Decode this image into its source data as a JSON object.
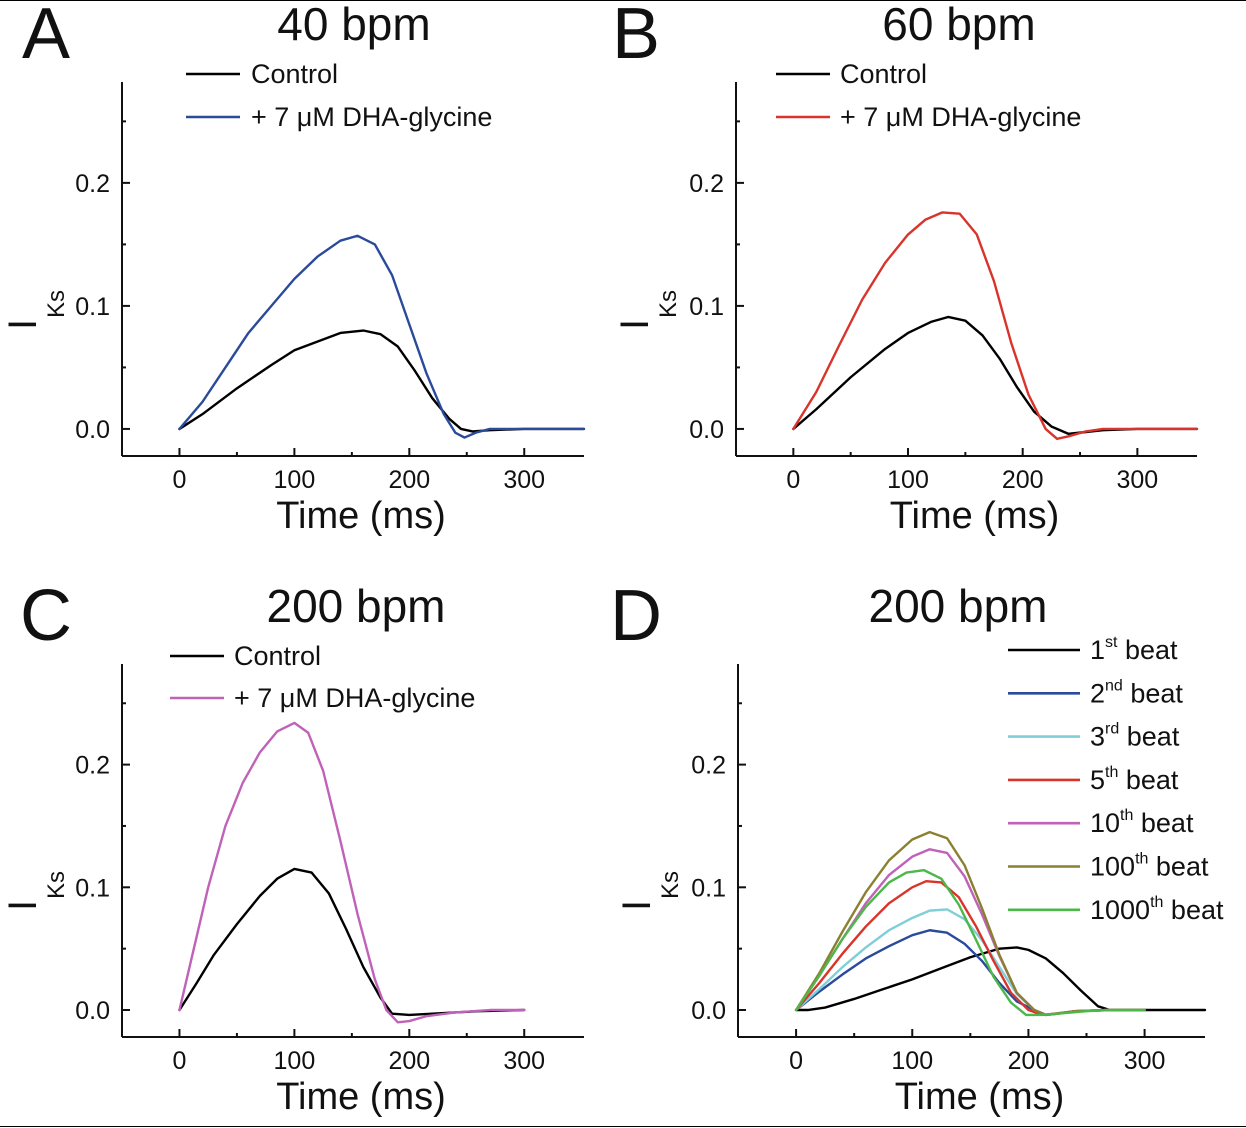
{
  "chart_data": [
    {
      "type": "line",
      "panel_label": "A",
      "title": "40 bpm",
      "xlabel": "Time (ms)",
      "ylabel": "I",
      "ylabel_sub": "Ks",
      "xlim": [
        -50,
        352
      ],
      "ylim": [
        -0.022,
        0.282
      ],
      "x_ticks": [
        0,
        100,
        200,
        300
      ],
      "x_minor_ticks": [
        50,
        150,
        250
      ],
      "y_ticks": [
        0.0,
        0.1,
        0.2
      ],
      "y_tick_labels": [
        "0.0",
        "0.1",
        "0.2"
      ],
      "y_minor_ticks": [
        0.05,
        0.15,
        0.25
      ],
      "grid": false,
      "legend": "top",
      "series": [
        {
          "name": "Control",
          "color": "#000000",
          "x": [
            0,
            20,
            50,
            80,
            100,
            120,
            140,
            160,
            175,
            190,
            205,
            220,
            235,
            245,
            255,
            270,
            300,
            352
          ],
          "y": [
            0.0,
            0.012,
            0.033,
            0.052,
            0.064,
            0.071,
            0.078,
            0.08,
            0.077,
            0.067,
            0.047,
            0.025,
            0.008,
            0.0,
            -0.002,
            -0.001,
            0.0,
            0.0
          ]
        },
        {
          "name": "+ 7 μM DHA-glycine",
          "color": "#2a4a9a",
          "x": [
            0,
            20,
            40,
            60,
            80,
            100,
            120,
            140,
            155,
            170,
            185,
            200,
            215,
            230,
            240,
            248,
            258,
            270,
            300,
            352
          ],
          "y": [
            0.0,
            0.022,
            0.05,
            0.078,
            0.1,
            0.122,
            0.14,
            0.153,
            0.157,
            0.15,
            0.125,
            0.085,
            0.045,
            0.012,
            -0.003,
            -0.007,
            -0.003,
            0.0,
            0.0,
            0.0
          ]
        }
      ]
    },
    {
      "type": "line",
      "panel_label": "B",
      "title": "60 bpm",
      "xlabel": "Time (ms)",
      "ylabel": "I",
      "ylabel_sub": "Ks",
      "xlim": [
        -50,
        352
      ],
      "ylim": [
        -0.022,
        0.282
      ],
      "x_ticks": [
        0,
        100,
        200,
        300
      ],
      "x_minor_ticks": [
        50,
        150,
        250
      ],
      "y_ticks": [
        0.0,
        0.1,
        0.2
      ],
      "y_tick_labels": [
        "0.0",
        "0.1",
        "0.2"
      ],
      "y_minor_ticks": [
        0.05,
        0.15,
        0.25
      ],
      "grid": false,
      "legend": "top",
      "series": [
        {
          "name": "Control",
          "color": "#000000",
          "x": [
            0,
            20,
            50,
            80,
            100,
            120,
            135,
            150,
            165,
            180,
            195,
            210,
            225,
            240,
            250,
            270,
            300,
            352
          ],
          "y": [
            0.0,
            0.016,
            0.042,
            0.065,
            0.078,
            0.087,
            0.091,
            0.088,
            0.076,
            0.057,
            0.034,
            0.014,
            0.002,
            -0.004,
            -0.003,
            -0.001,
            0.0,
            0.0
          ]
        },
        {
          "name": "+ 7 μM DHA-glycine",
          "color": "#d9342b",
          "x": [
            0,
            20,
            40,
            60,
            80,
            100,
            115,
            130,
            145,
            160,
            175,
            190,
            205,
            220,
            230,
            240,
            255,
            270,
            300,
            352
          ],
          "y": [
            0.0,
            0.03,
            0.068,
            0.105,
            0.135,
            0.158,
            0.17,
            0.176,
            0.175,
            0.158,
            0.12,
            0.07,
            0.028,
            0.0,
            -0.008,
            -0.006,
            -0.002,
            0.0,
            0.0,
            0.0
          ]
        }
      ]
    },
    {
      "type": "line",
      "panel_label": "C",
      "title": "200 bpm",
      "xlabel": "Time (ms)",
      "ylabel": "I",
      "ylabel_sub": "Ks",
      "xlim": [
        -50,
        352
      ],
      "ylim": [
        -0.022,
        0.282
      ],
      "x_ticks": [
        0,
        100,
        200,
        300
      ],
      "x_minor_ticks": [
        50,
        150,
        250
      ],
      "y_ticks": [
        0.0,
        0.1,
        0.2
      ],
      "y_tick_labels": [
        "0.0",
        "0.1",
        "0.2"
      ],
      "y_minor_ticks": [
        0.05,
        0.15,
        0.25
      ],
      "grid": false,
      "legend": "top",
      "series": [
        {
          "name": "Control",
          "color": "#000000",
          "x": [
            0,
            15,
            30,
            50,
            70,
            85,
            100,
            115,
            130,
            145,
            160,
            175,
            185,
            200,
            220,
            260,
            300
          ],
          "y": [
            0.0,
            0.022,
            0.045,
            0.07,
            0.093,
            0.107,
            0.115,
            0.112,
            0.095,
            0.066,
            0.035,
            0.01,
            -0.003,
            -0.004,
            -0.003,
            -0.001,
            0.0
          ]
        },
        {
          "name": "+ 7 μM DHA-glycine",
          "color": "#c062b8",
          "x": [
            0,
            10,
            25,
            40,
            55,
            70,
            85,
            100,
            112,
            125,
            140,
            155,
            170,
            180,
            190,
            200,
            215,
            240,
            270,
            300
          ],
          "y": [
            0.0,
            0.04,
            0.1,
            0.15,
            0.185,
            0.21,
            0.227,
            0.234,
            0.226,
            0.195,
            0.138,
            0.078,
            0.025,
            0.0,
            -0.01,
            -0.009,
            -0.005,
            -0.002,
            0.0,
            0.0
          ]
        }
      ]
    },
    {
      "type": "line",
      "panel_label": "D",
      "title": "200 bpm",
      "xlabel": "Time (ms)",
      "ylabel": "I",
      "ylabel_sub": "Ks",
      "xlim": [
        -50,
        352
      ],
      "ylim": [
        -0.022,
        0.282
      ],
      "x_ticks": [
        0,
        100,
        200,
        300
      ],
      "x_minor_ticks": [
        50,
        150,
        250
      ],
      "y_ticks": [
        0.0,
        0.1,
        0.2
      ],
      "y_tick_labels": [
        "0.0",
        "0.1",
        "0.2"
      ],
      "y_minor_ticks": [
        0.05,
        0.15,
        0.25
      ],
      "grid": false,
      "legend": "right",
      "series": [
        {
          "name": "1",
          "sup": "st",
          "suffix": " beat",
          "color": "#000000",
          "x": [
            0,
            10,
            25,
            50,
            75,
            100,
            125,
            150,
            175,
            190,
            200,
            215,
            230,
            245,
            260,
            270,
            290,
            352
          ],
          "y": [
            0.0,
            0.0,
            0.002,
            0.009,
            0.017,
            0.025,
            0.034,
            0.043,
            0.05,
            0.051,
            0.049,
            0.042,
            0.03,
            0.016,
            0.003,
            0.0,
            0.0,
            0.0
          ]
        },
        {
          "name": "2",
          "sup": "nd",
          "suffix": " beat",
          "color": "#2a4a9a",
          "x": [
            0,
            20,
            40,
            60,
            80,
            100,
            115,
            130,
            145,
            160,
            175,
            190,
            205,
            215,
            225,
            240,
            270,
            300
          ],
          "y": [
            0.0,
            0.015,
            0.029,
            0.042,
            0.052,
            0.061,
            0.065,
            0.063,
            0.054,
            0.04,
            0.022,
            0.007,
            0.0,
            -0.004,
            -0.003,
            -0.001,
            0.0,
            0.0
          ]
        },
        {
          "name": "3",
          "sup": "rd",
          "suffix": " beat",
          "color": "#7fcfd8",
          "x": [
            0,
            20,
            40,
            60,
            80,
            100,
            115,
            130,
            145,
            160,
            175,
            190,
            205,
            215,
            225,
            240,
            270,
            300
          ],
          "y": [
            0.0,
            0.017,
            0.035,
            0.051,
            0.065,
            0.075,
            0.081,
            0.082,
            0.074,
            0.057,
            0.035,
            0.013,
            0.0,
            -0.004,
            -0.003,
            -0.001,
            0.0,
            0.0
          ]
        },
        {
          "name": "5",
          "sup": "th",
          "suffix": " beat",
          "color": "#d9342b",
          "x": [
            0,
            20,
            40,
            60,
            80,
            100,
            112,
            125,
            140,
            155,
            170,
            185,
            200,
            212,
            222,
            240,
            270,
            300
          ],
          "y": [
            0.0,
            0.022,
            0.046,
            0.068,
            0.087,
            0.1,
            0.105,
            0.104,
            0.092,
            0.068,
            0.04,
            0.014,
            0.0,
            -0.004,
            -0.003,
            -0.001,
            0.0,
            0.0
          ]
        },
        {
          "name": "10",
          "sup": "th",
          "suffix": " beat",
          "color": "#c062b8",
          "x": [
            0,
            20,
            40,
            60,
            80,
            100,
            115,
            130,
            145,
            160,
            175,
            190,
            205,
            215,
            225,
            240,
            270,
            300
          ],
          "y": [
            0.0,
            0.028,
            0.058,
            0.087,
            0.11,
            0.125,
            0.131,
            0.128,
            0.109,
            0.078,
            0.044,
            0.014,
            0.0,
            -0.004,
            -0.003,
            -0.001,
            0.0,
            0.0
          ]
        },
        {
          "name": "100",
          "sup": "th",
          "suffix": " beat",
          "color": "#8a8030",
          "x": [
            0,
            20,
            40,
            60,
            80,
            100,
            115,
            130,
            145,
            160,
            175,
            190,
            205,
            215,
            225,
            240,
            270,
            300
          ],
          "y": [
            0.0,
            0.03,
            0.064,
            0.096,
            0.122,
            0.139,
            0.145,
            0.14,
            0.118,
            0.083,
            0.045,
            0.014,
            0.0,
            -0.004,
            -0.003,
            -0.001,
            0.0,
            0.0
          ]
        },
        {
          "name": "1000",
          "sup": "th",
          "suffix": " beat",
          "color": "#4db84a",
          "x": [
            0,
            20,
            40,
            60,
            80,
            95,
            110,
            125,
            140,
            155,
            170,
            185,
            198,
            210,
            225,
            250,
            270,
            300
          ],
          "y": [
            0.0,
            0.028,
            0.058,
            0.084,
            0.104,
            0.112,
            0.114,
            0.107,
            0.086,
            0.057,
            0.027,
            0.006,
            -0.004,
            -0.004,
            -0.003,
            -0.001,
            0.0,
            0.0
          ]
        }
      ]
    }
  ]
}
